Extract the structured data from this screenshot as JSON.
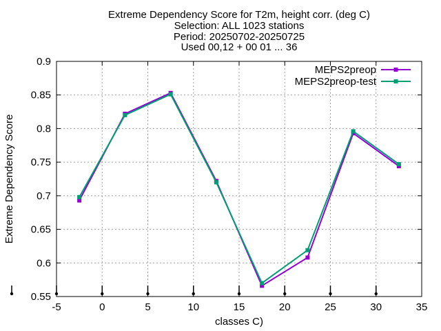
{
  "chart_data": {
    "type": "line",
    "title_lines": [
      "Extreme Dependency Score  for T2m, height corr. (deg C)",
      "Selection: ALL    1023 stations",
      "Period: 20250702-20250725",
      "Used 00,12 + 00 01 ... 36"
    ],
    "xlabel": "classes C)",
    "ylabel": "Extreme Dependency Score",
    "xlim": [
      -5,
      35
    ],
    "ylim": [
      0.55,
      0.9
    ],
    "xticks": [
      -5,
      0,
      5,
      10,
      15,
      20,
      25,
      30,
      35
    ],
    "yticks": [
      0.55,
      0.6,
      0.65,
      0.7,
      0.75,
      0.8,
      0.85,
      0.9
    ],
    "xtick_labels": [
      "-5",
      "0",
      "5",
      "10",
      "15",
      "20",
      "25",
      "30",
      "35"
    ],
    "ytick_labels": [
      "0.55",
      "0.6",
      "0.65",
      "0.7",
      "0.75",
      "0.8",
      "0.85",
      "0.9"
    ],
    "grid": true,
    "legend_position": "top-right",
    "x": [
      -2.5,
      2.5,
      7.5,
      12.5,
      17.5,
      22.5,
      27.5,
      32.5
    ],
    "series": [
      {
        "name": "MEPS2preop",
        "color": "#9400d3",
        "values": [
          0.693,
          0.822,
          0.853,
          0.722,
          0.566,
          0.608,
          0.793,
          0.744
        ]
      },
      {
        "name": "MEPS2preop-test",
        "color": "#009e73",
        "values": [
          0.698,
          0.82,
          0.851,
          0.72,
          0.57,
          0.619,
          0.796,
          0.747
        ]
      }
    ],
    "count_marker_x": [
      -10,
      -5,
      0,
      5,
      10,
      15,
      20,
      25,
      30
    ]
  }
}
